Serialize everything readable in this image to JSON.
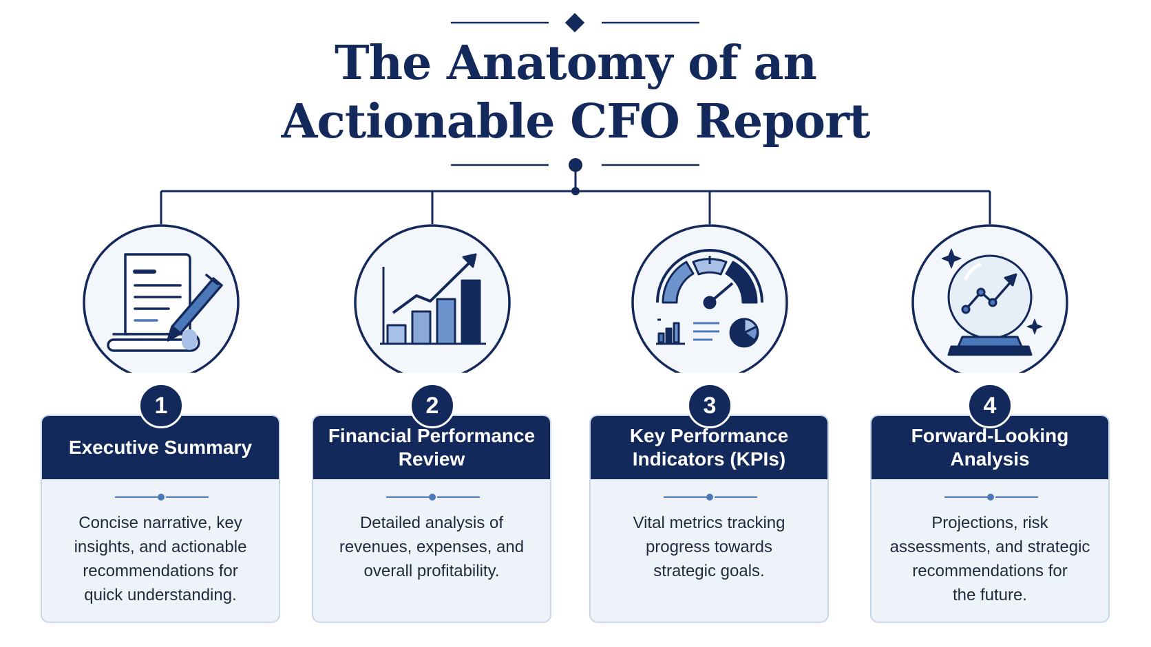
{
  "title": {
    "line1": "The Anatomy of an",
    "line2": "Actionable CFO Report"
  },
  "colors": {
    "navy": "#13295b",
    "accent_blue": "#4a78b8",
    "light_blue": "#a9c1e6",
    "card_bg": "#eef3fa"
  },
  "sections": [
    {
      "number": "1",
      "title_lines": [
        "Executive Summary"
      ],
      "description_lines": [
        "Concise narrative, key",
        "insights, and actionable",
        "recommendations for",
        "quick understanding."
      ],
      "icon": "document-pen-icon"
    },
    {
      "number": "2",
      "title_lines": [
        "Financial Performance",
        "Review"
      ],
      "description_lines": [
        "Detailed analysis of",
        "revenues, expenses, and",
        "overall profitability."
      ],
      "icon": "bar-chart-trend-icon"
    },
    {
      "number": "3",
      "title_lines": [
        "Key Performance",
        "Indicators (KPIs)"
      ],
      "description_lines": [
        "Vital metrics tracking",
        "progress towards",
        "strategic goals."
      ],
      "icon": "gauge-dashboard-icon"
    },
    {
      "number": "4",
      "title_lines": [
        "Forward-Looking",
        "Analysis"
      ],
      "description_lines": [
        "Projections, risk",
        "assessments, and strategic",
        "recommendations for",
        "the future."
      ],
      "icon": "crystal-ball-icon"
    }
  ]
}
